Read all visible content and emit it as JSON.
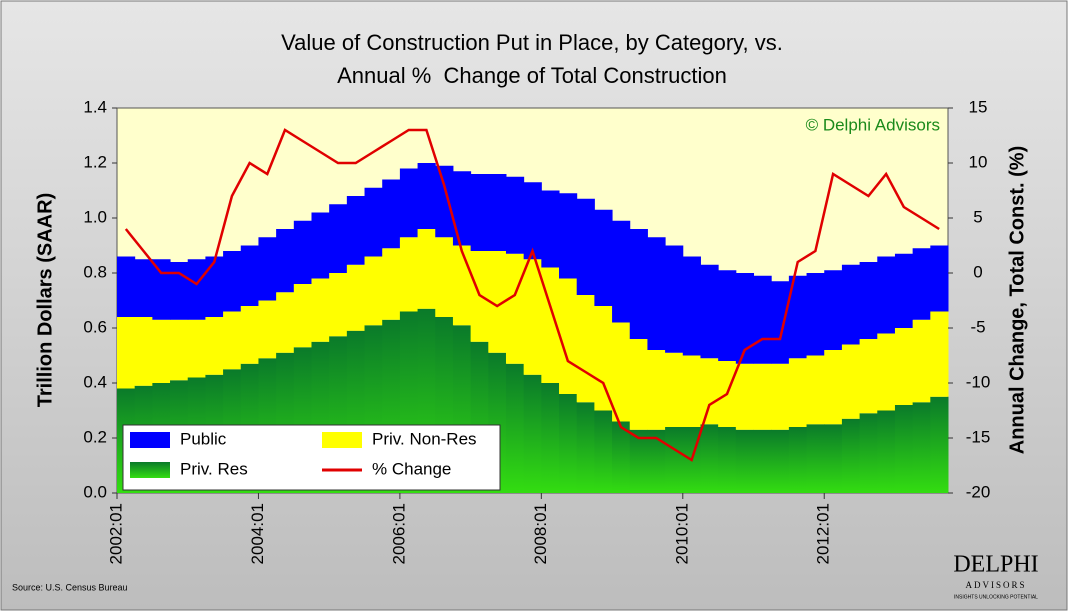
{
  "chart_data": {
    "type": "stacked-bar-line",
    "title": [
      "Value of Construction Put in Place, by Category, vs.",
      "Annual %  Change of Total Construction"
    ],
    "y_label": "Trillion Dollars (SAAR)",
    "y2_label": "Annual Change, Total Const. (%)",
    "annotations": {
      "copyright": "© Delphi Advisors",
      "source": "Source: U.S. Census Bureau",
      "logo": "DELPHI",
      "logo_sub": "ADVISORS",
      "logo_tagline": "INSIGHTS UNLOCKING POTENTIAL"
    },
    "categories": [
      "2002:01",
      null,
      null,
      null,
      null,
      null,
      null,
      null,
      "2004:01",
      null,
      null,
      null,
      null,
      null,
      null,
      null,
      "2006:01",
      null,
      null,
      null,
      null,
      null,
      null,
      null,
      "2008:01",
      null,
      null,
      null,
      null,
      null,
      null,
      null,
      "2010:01",
      null,
      null,
      null,
      null,
      null,
      null,
      null,
      "2012:01",
      null,
      null,
      null,
      null,
      null,
      null
    ],
    "ylim": [
      0,
      1.4
    ],
    "yticks": [
      {
        "value": 0,
        "label": "0.0"
      },
      {
        "value": 0.2,
        "label": "0.2"
      },
      {
        "value": 0.4,
        "label": "0.4"
      },
      {
        "value": 0.6,
        "label": "0.6"
      },
      {
        "value": 0.8,
        "label": "0.8"
      },
      {
        "value": 1,
        "label": "1.0"
      },
      {
        "value": 1.2,
        "label": "1.2"
      },
      {
        "value": 1.4,
        "label": "1.4"
      }
    ],
    "y2lim": [
      -20,
      15
    ],
    "y2ticks": [
      -20,
      -15,
      -10,
      -5,
      0,
      5,
      10,
      15
    ],
    "legend": "lower-left",
    "series": [
      {
        "name": "Public",
        "color": "#0000ff",
        "values": [
          0.22,
          0.21,
          0.22,
          0.21,
          0.22,
          0.22,
          0.22,
          0.22,
          0.23,
          0.23,
          0.23,
          0.24,
          0.25,
          0.25,
          0.25,
          0.25,
          0.25,
          0.24,
          0.26,
          0.27,
          0.28,
          0.28,
          0.28,
          0.28,
          0.28,
          0.31,
          0.35,
          0.35,
          0.37,
          0.4,
          0.41,
          0.39,
          0.36,
          0.34,
          0.33,
          0.33,
          0.32,
          0.3,
          0.3,
          0.3,
          0.29,
          0.29,
          0.28,
          0.28,
          0.27,
          0.26,
          0.24
        ]
      },
      {
        "name": "Priv. Non-Res",
        "color": "#ffff00",
        "values": [
          0.26,
          0.25,
          0.23,
          0.22,
          0.21,
          0.21,
          0.21,
          0.21,
          0.21,
          0.22,
          0.23,
          0.23,
          0.23,
          0.24,
          0.25,
          0.26,
          0.27,
          0.29,
          0.29,
          0.29,
          0.33,
          0.37,
          0.4,
          0.42,
          0.42,
          0.42,
          0.39,
          0.38,
          0.36,
          0.33,
          0.29,
          0.27,
          0.26,
          0.24,
          0.24,
          0.24,
          0.24,
          0.24,
          0.25,
          0.25,
          0.27,
          0.27,
          0.27,
          0.28,
          0.28,
          0.3,
          0.31
        ]
      },
      {
        "name": "Priv. Res",
        "color": "#1fb41f",
        "values": [
          0.38,
          0.39,
          0.4,
          0.41,
          0.42,
          0.43,
          0.45,
          0.47,
          0.49,
          0.51,
          0.53,
          0.55,
          0.57,
          0.59,
          0.61,
          0.63,
          0.66,
          0.67,
          0.64,
          0.61,
          0.55,
          0.51,
          0.47,
          0.43,
          0.4,
          0.36,
          0.33,
          0.3,
          0.26,
          0.23,
          0.23,
          0.24,
          0.24,
          0.25,
          0.24,
          0.23,
          0.23,
          0.23,
          0.24,
          0.25,
          0.25,
          0.27,
          0.29,
          0.3,
          0.32,
          0.33,
          0.35
        ]
      },
      {
        "name": "% Change",
        "color": "#e00000",
        "axis": "y2",
        "values": [
          4,
          2,
          0,
          0,
          -1,
          1,
          7,
          10,
          9,
          13,
          12,
          11,
          10,
          10,
          11,
          12,
          13,
          13,
          8,
          2,
          -2,
          -3,
          -2,
          2,
          -3,
          -8,
          -9,
          -10,
          -14,
          -15,
          -15,
          -16,
          -17,
          -12,
          -11,
          -7,
          -6,
          -6,
          1,
          2,
          9,
          8,
          7,
          9,
          6,
          5,
          4
        ]
      }
    ]
  }
}
